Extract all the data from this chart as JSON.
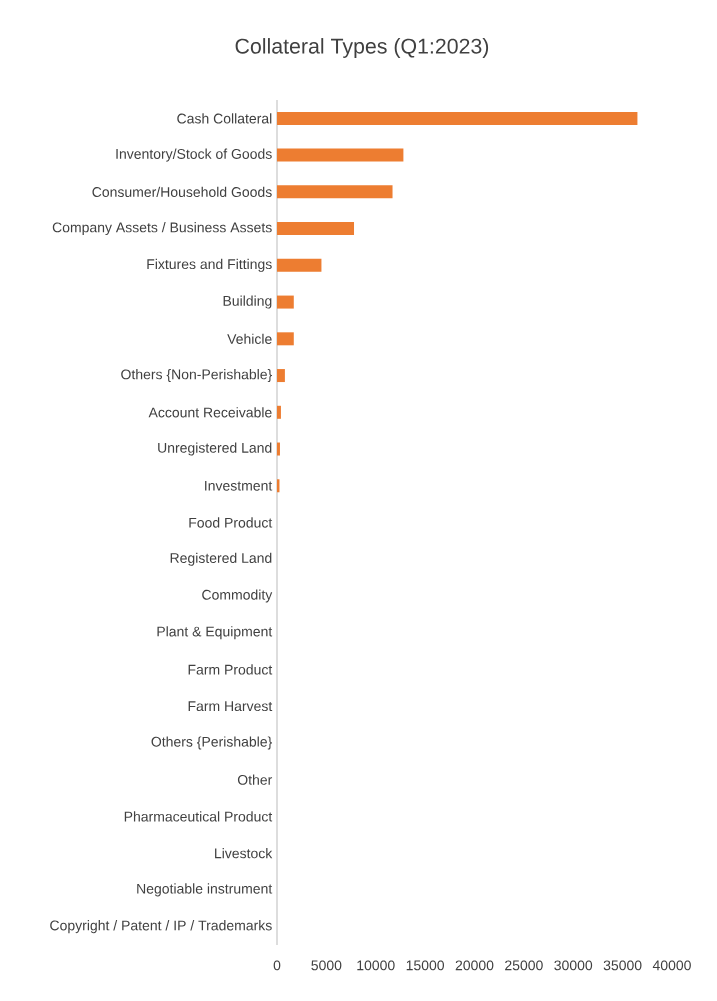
{
  "chart_data": {
    "type": "bar",
    "orientation": "horizontal",
    "title": "Collateral Types (Q1:2023)",
    "categories": [
      "Cash Collateral",
      "Inventory/Stock of Goods",
      "Consumer/Household Goods",
      "Company Assets / Business Assets",
      "Fixtures and Fittings",
      "Building",
      "Vehicle",
      "Others {Non-Perishable}",
      "Account Receivable",
      "Unregistered Land",
      "Investment",
      "Food Product",
      "Registered Land",
      "Commodity",
      "Plant & Equipment",
      "Farm Product",
      "Farm Harvest",
      "Others {Perishable}",
      "Other",
      "Pharmaceutical Product",
      "Livestock",
      "Negotiable instrument",
      "Copyright / Patent / IP / Trademarks"
    ],
    "values": [
      36500,
      12800,
      11700,
      7800,
      4500,
      1700,
      1700,
      800,
      400,
      300,
      250,
      0,
      0,
      0,
      0,
      0,
      0,
      0,
      0,
      0,
      0,
      0,
      0
    ],
    "color": "#ed7d31",
    "xlim": [
      0,
      40000
    ],
    "xticks": [
      0,
      5000,
      10000,
      15000,
      20000,
      25000,
      30000,
      35000,
      40000
    ]
  }
}
